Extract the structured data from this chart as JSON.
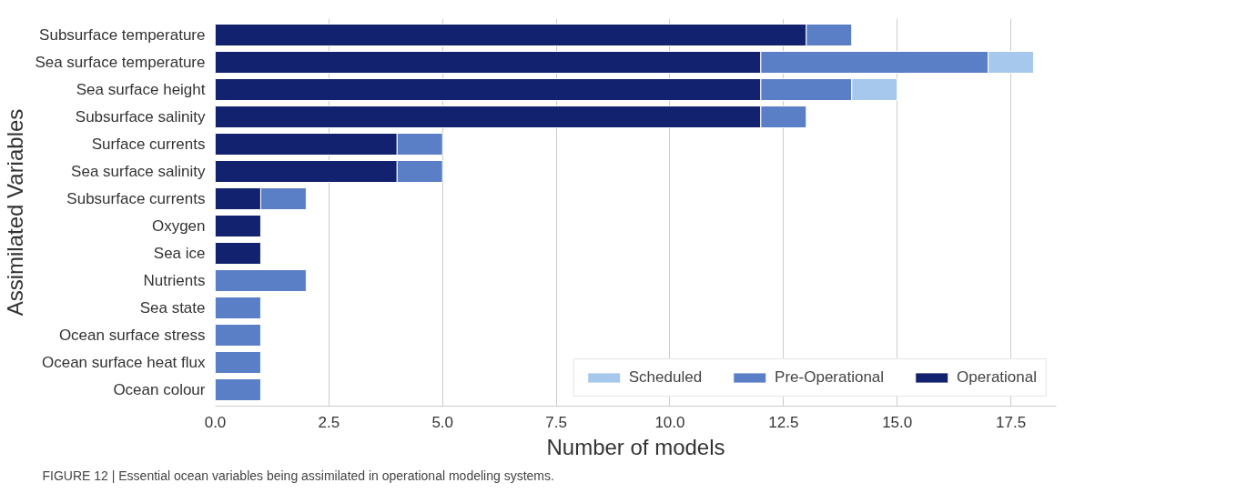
{
  "chart_data": {
    "type": "bar",
    "orientation": "horizontal",
    "stacked": true,
    "xlabel": "Number of models",
    "ylabel": "Assimilated Variables",
    "categories": [
      "Subsurface temperature",
      "Sea surface temperature",
      "Sea surface height",
      "Subsurface salinity",
      "Surface currents",
      "Sea surface salinity",
      "Subsurface currents",
      "Oxygen",
      "Sea ice",
      "Nutrients",
      "Sea state",
      "Ocean surface stress",
      "Ocean surface heat flux",
      "Ocean colour"
    ],
    "series": [
      {
        "name": "Operational",
        "color": "#13226e",
        "values": [
          13,
          12,
          12,
          12,
          4,
          4,
          1,
          1,
          1,
          0,
          0,
          0,
          0,
          0
        ]
      },
      {
        "name": "Pre-Operational",
        "color": "#5b7fc7",
        "values": [
          1,
          5,
          2,
          1,
          1,
          1,
          1,
          0,
          0,
          2,
          1,
          1,
          1,
          1
        ]
      },
      {
        "name": "Scheduled",
        "color": "#a6c8ec",
        "values": [
          0,
          1,
          1,
          0,
          0,
          0,
          0,
          0,
          0,
          0,
          0,
          0,
          0,
          0
        ]
      }
    ],
    "xlim": [
      0,
      18.5
    ],
    "xticks": [
      {
        "value": 0,
        "label": "0.0"
      },
      2.5,
      {
        "value": 5,
        "label": "5.0"
      },
      7.5,
      {
        "value": 10,
        "label": "10.0"
      },
      12.5,
      {
        "value": 15,
        "label": "15.0"
      },
      17.5
    ],
    "grid": "x",
    "legend": "bottom right",
    "annotations": [
      "FIGURE 12 | Essential ocean variables being assimilated in operational modeling systems."
    ]
  }
}
